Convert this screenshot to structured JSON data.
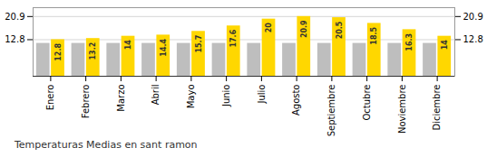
{
  "chart_data": {
    "type": "bar",
    "title": "Temperaturas Medias en sant ramon",
    "categories": [
      "Enero",
      "Febrero",
      "Marzo",
      "Abril",
      "Mayo",
      "Junio",
      "Julio",
      "Agosto",
      "Septiembre",
      "Octubre",
      "Noviembre",
      "Diciembre"
    ],
    "series": [
      {
        "color": "#BEBEBE",
        "values": [
          11.5,
          11.5,
          11.5,
          11.5,
          11.5,
          11.5,
          11.5,
          11.5,
          11.5,
          11.5,
          11.5,
          11.5
        ]
      },
      {
        "color": "#FFD700",
        "values": [
          12.8,
          13.2,
          14.0,
          14.4,
          15.7,
          17.6,
          20.0,
          20.9,
          20.5,
          18.5,
          16.3,
          14.0
        ],
        "data_labels": true
      }
    ],
    "ylim": [
      0,
      24
    ],
    "yticks": [
      12.8,
      20.9
    ],
    "grid": true
  }
}
